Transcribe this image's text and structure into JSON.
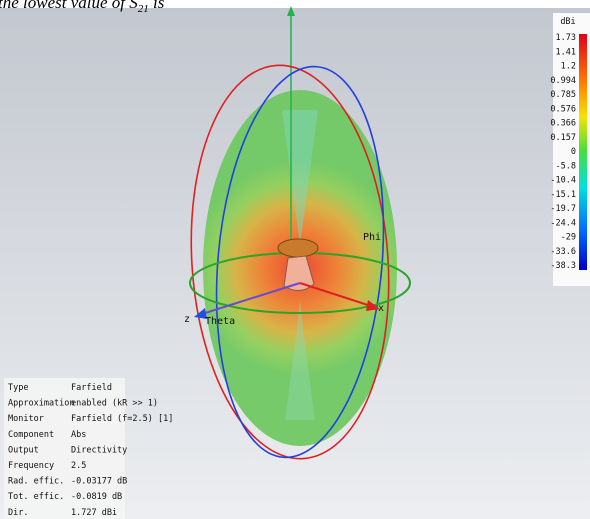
{
  "caption": {
    "text": "the lowest value of ",
    "symbol": "S",
    "subscript": "21",
    "suffix": " is"
  },
  "colorbar": {
    "unit": "dBi",
    "labels": [
      "1.73",
      "1.41",
      "1.2",
      "0.994",
      "0.785",
      "0.576",
      "0.366",
      "0.157",
      "0",
      "-5.8",
      "-10.4",
      "-15.1",
      "-19.7",
      "-24.4",
      "-29",
      "-33.6",
      "-38.3"
    ]
  },
  "axes": {
    "phi": "Phi",
    "theta": "Theta",
    "z": "z",
    "x": "x"
  },
  "info": {
    "rows": [
      [
        "Type",
        "Farfield"
      ],
      [
        "Approximation",
        "enabled (kR >> 1)"
      ],
      [
        "Monitor",
        "Farfield (f=2.5) [1]"
      ],
      [
        "Component",
        "Abs"
      ],
      [
        "Output",
        "Directivity"
      ],
      [
        "Frequency",
        "2.5"
      ],
      [
        "Rad. effic.",
        "-0.03177 dB"
      ],
      [
        "Tot. effic.",
        "-0.0819 dB"
      ],
      [
        "Dir.",
        "1.727 dBi"
      ]
    ]
  }
}
